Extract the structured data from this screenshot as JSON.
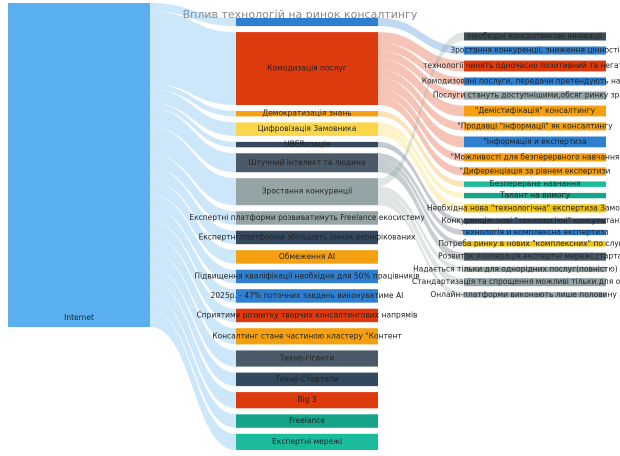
{
  "chart_data": {
    "type": "sankey",
    "title": "Вплив технологій на ринок консалтингу",
    "nodes": [
      {
        "name": "Internet",
        "color": "#5aaff0"
      },
      {
        "name": null,
        "color": "#2f7fd0"
      },
      {
        "name": "Комодизація послуг",
        "color": "#dd3a0e"
      },
      {
        "name": "Демократизація знань",
        "color": "#f5a010"
      },
      {
        "name": "Цифровізація Замовника",
        "color": "#fad74a"
      },
      {
        "name": "UBERизація",
        "color": "#34495e"
      },
      {
        "name": "Штучний інтелект та людина",
        "color": "#4a5a68"
      },
      {
        "name": "Зростання конкуренції",
        "color": "#95a5a6"
      },
      {
        "name": "Необхідні консалтингові інновації",
        "color": "#3d4b55"
      },
      {
        "name": "Зростання конкуренції, зниження цінності",
        "color": "#2f7fd0"
      },
      {
        "name": "технології чинять одночасно позитивний та негативний",
        "color": "#dd3a0e"
      },
      {
        "name": "Комодизовані послуги, передачи претендують на \"Цифр",
        "color": "#2f7fd0"
      },
      {
        "name": "Послуги стануть доступнішими,обсяг ринку зросте",
        "color": "#95a5a6"
      },
      {
        "name": "\"Демістифікація\" консалтингу",
        "color": "#f5a010"
      },
      {
        "name": "\"Продавці \"інформації\" як консалтингу",
        "color": "#f5a010"
      },
      {
        "name": "\"Інформація и експертиза",
        "color": "#2f7fd0"
      },
      {
        "name": "\"Можливості для безперервного навчання",
        "color": "#f5a010"
      },
      {
        "name": "\"Диференціація за рівнем експертизи",
        "color": "#f5a010"
      },
      {
        "name": "Безперервне навчання",
        "color": "#1abc9c"
      },
      {
        "name": "Талант на вимогу",
        "color": "#17a589"
      },
      {
        "name": "Необхідна нова \"технологічна\" експертиза Замовника",
        "color": "#f1c40f"
      },
      {
        "name": "Конкуренція: нові \"технологічні\" консультанти",
        "color": "#34495e"
      },
      {
        "name": "технологія и комплексна експертиза",
        "color": "#2f7fd0"
      },
      {
        "name": "Потреба ринку в нових \"комплексних\" по слугах",
        "color": "#f1c40f"
      },
      {
        "name": "Розвиток:кооперація,експертні мережі,стартапи",
        "color": "#4a5a68"
      },
      {
        "name": "Надається тільки для однорідних послуг(повністю) формаліз",
        "color": "#95a5a6"
      },
      {
        "name": "Стандартизація та спрощення можливі тільки для очевидних",
        "color": "#95a5a6"
      },
      {
        "name": "Онлайн-платформи виконають лише половину робіт",
        "color": "#95a5a6"
      },
      {
        "name": "Експертні платформи розвиватимуть Freelance екосистему",
        "color": "#95a5a6"
      },
      {
        "name": "Експертні платформи збільшать ринок верифікованих",
        "color": "#34495e"
      },
      {
        "name": "Обмеження АІ",
        "color": "#f5a010"
      },
      {
        "name": "Підвищення кваліфікації необхідне для 50% працівників",
        "color": "#2f7fd0"
      },
      {
        "name": "2025р. - 47% поточних завдань виконуватиме АІ",
        "color": "#2f7fd0"
      },
      {
        "name": "Сприятиме розвитку творчих консалтингових напрямів",
        "color": "#dd3a0e"
      },
      {
        "name": "Консалтинг стане частиною кластеру \"Контент",
        "color": "#f5a010"
      },
      {
        "name": "Техно-гіганти",
        "color": "#4a5a68"
      },
      {
        "name": "Техно-Стартапи",
        "color": "#34495e"
      },
      {
        "name": "Big 3",
        "color": "#dd3a0e"
      },
      {
        "name": "Freelance",
        "color": "#17a589"
      },
      {
        "name": "Експертні мережі",
        "color": "#1abc9c"
      }
    ],
    "links": [
      {
        "source": 0,
        "target": 1,
        "value": 3
      },
      {
        "source": 0,
        "target": 2,
        "value": 27
      },
      {
        "source": 0,
        "target": 3,
        "value": 2
      },
      {
        "source": 0,
        "target": 4,
        "value": 5
      },
      {
        "source": 0,
        "target": 5,
        "value": 2
      },
      {
        "source": 0,
        "target": 6,
        "value": 7
      },
      {
        "source": 0,
        "target": 7,
        "value": 10
      },
      {
        "source": 1,
        "target": 9,
        "value": 3
      },
      {
        "source": 2,
        "target": 10,
        "value": 4
      },
      {
        "source": 2,
        "target": 11,
        "value": 3
      },
      {
        "source": 2,
        "target": 12,
        "value": 3
      },
      {
        "source": 2,
        "target": 13,
        "value": 4
      },
      {
        "source": 2,
        "target": 14,
        "value": 3
      },
      {
        "source": 2,
        "target": 15,
        "value": 4
      },
      {
        "source": 2,
        "target": 16,
        "value": 3
      },
      {
        "source": 2,
        "target": 17,
        "value": 3
      },
      {
        "source": 3,
        "target": 18,
        "value": 2
      },
      {
        "source": 4,
        "target": 19,
        "value": 2
      },
      {
        "source": 4,
        "target": 20,
        "value": 3
      },
      {
        "source": 5,
        "target": 21,
        "value": 2
      },
      {
        "source": 6,
        "target": 22,
        "value": 2
      },
      {
        "source": 6,
        "target": 23,
        "value": 2
      },
      {
        "source": 6,
        "target": 24,
        "value": 3
      },
      {
        "source": 7,
        "target": 8,
        "value": 3
      },
      {
        "source": 7,
        "target": 25,
        "value": 2
      },
      {
        "source": 7,
        "target": 26,
        "value": 3
      },
      {
        "source": 7,
        "target": 27,
        "value": 2
      },
      {
        "source": 0,
        "target": 28,
        "value": 5
      },
      {
        "source": 0,
        "target": 29,
        "value": 5
      },
      {
        "source": 0,
        "target": 30,
        "value": 5
      },
      {
        "source": 0,
        "target": 31,
        "value": 5
      },
      {
        "source": 0,
        "target": 32,
        "value": 5
      },
      {
        "source": 0,
        "target": 33,
        "value": 5
      },
      {
        "source": 0,
        "target": 34,
        "value": 6
      },
      {
        "source": 0,
        "target": 35,
        "value": 6
      },
      {
        "source": 0,
        "target": 36,
        "value": 5
      },
      {
        "source": 0,
        "target": 37,
        "value": 6
      },
      {
        "source": 0,
        "target": 38,
        "value": 5
      },
      {
        "source": 0,
        "target": 39,
        "value": 6
      }
    ]
  }
}
